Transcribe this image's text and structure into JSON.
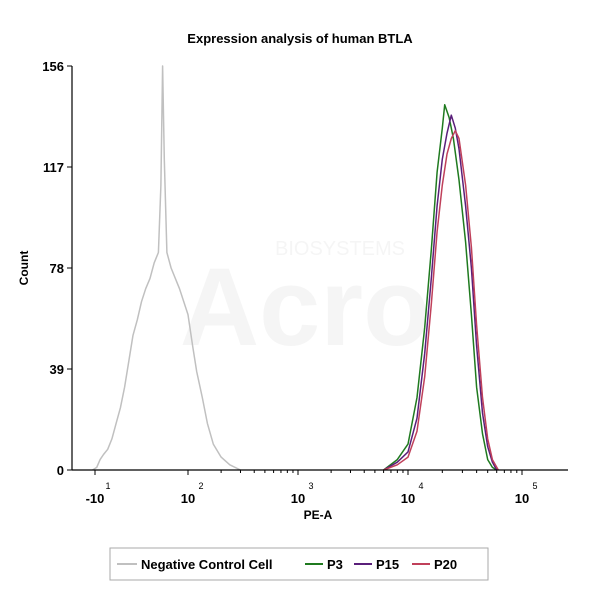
{
  "chart_data": {
    "type": "line",
    "title": "Expression analysis of human BTLA",
    "xlabel": "PE-A",
    "ylabel": "Count",
    "x_scale": "biexponential/log",
    "xlim": [
      -10,
      100000
    ],
    "ylim": [
      0,
      156
    ],
    "y_ticks": [
      0,
      39,
      78,
      117,
      156
    ],
    "x_ticks": [
      {
        "value": -10,
        "base": "-10",
        "exp": "1"
      },
      {
        "value": 100,
        "base": "10",
        "exp": "2"
      },
      {
        "value": 1000,
        "base": "10",
        "exp": "3"
      },
      {
        "value": 10000,
        "base": "10",
        "exp": "4"
      },
      {
        "value": 100000,
        "base": "10",
        "exp": "5"
      }
    ],
    "grid": false,
    "legend_position": "bottom",
    "watermark": "BIOSYSTEMS Acro",
    "series": [
      {
        "name": "Negative Control Cell",
        "color": "#c0c0c0",
        "points": [
          [
            -12,
            0
          ],
          [
            -8,
            1
          ],
          [
            -4,
            4
          ],
          [
            0,
            6
          ],
          [
            5,
            8
          ],
          [
            10,
            12
          ],
          [
            15,
            18
          ],
          [
            20,
            24
          ],
          [
            25,
            32
          ],
          [
            30,
            42
          ],
          [
            35,
            52
          ],
          [
            40,
            58
          ],
          [
            45,
            65
          ],
          [
            50,
            70
          ],
          [
            55,
            74
          ],
          [
            60,
            80
          ],
          [
            65,
            84
          ],
          [
            68,
            110
          ],
          [
            70,
            156
          ],
          [
            72,
            120
          ],
          [
            75,
            84
          ],
          [
            80,
            78
          ],
          [
            90,
            70
          ],
          [
            100,
            60
          ],
          [
            110,
            48
          ],
          [
            120,
            38
          ],
          [
            135,
            28
          ],
          [
            150,
            18
          ],
          [
            170,
            10
          ],
          [
            200,
            5
          ],
          [
            240,
            2
          ],
          [
            300,
            0
          ]
        ]
      },
      {
        "name": "P3",
        "color": "#1f7a1f",
        "points": [
          [
            6000,
            0
          ],
          [
            8000,
            4
          ],
          [
            10000,
            10
          ],
          [
            12000,
            28
          ],
          [
            14000,
            55
          ],
          [
            16000,
            85
          ],
          [
            18000,
            115
          ],
          [
            20000,
            132
          ],
          [
            21000,
            141
          ],
          [
            23000,
            136
          ],
          [
            25000,
            128
          ],
          [
            28000,
            112
          ],
          [
            32000,
            88
          ],
          [
            36000,
            60
          ],
          [
            40000,
            32
          ],
          [
            45000,
            14
          ],
          [
            50000,
            4
          ],
          [
            55000,
            1
          ],
          [
            60000,
            0
          ]
        ]
      },
      {
        "name": "P15",
        "color": "#5a1f7a",
        "points": [
          [
            6000,
            0
          ],
          [
            8000,
            3
          ],
          [
            10000,
            7
          ],
          [
            12000,
            20
          ],
          [
            14000,
            45
          ],
          [
            16000,
            74
          ],
          [
            18000,
            102
          ],
          [
            20000,
            120
          ],
          [
            22000,
            130
          ],
          [
            24000,
            137
          ],
          [
            26000,
            132
          ],
          [
            28000,
            124
          ],
          [
            32000,
            102
          ],
          [
            36000,
            78
          ],
          [
            40000,
            48
          ],
          [
            45000,
            22
          ],
          [
            50000,
            9
          ],
          [
            55000,
            3
          ],
          [
            60000,
            0
          ]
        ]
      },
      {
        "name": "P20",
        "color": "#c0405a",
        "points": [
          [
            6000,
            0
          ],
          [
            8000,
            2
          ],
          [
            10000,
            5
          ],
          [
            12000,
            15
          ],
          [
            14000,
            36
          ],
          [
            16000,
            64
          ],
          [
            18000,
            92
          ],
          [
            20000,
            110
          ],
          [
            22000,
            122
          ],
          [
            24000,
            128
          ],
          [
            26000,
            131
          ],
          [
            28000,
            128
          ],
          [
            32000,
            110
          ],
          [
            36000,
            86
          ],
          [
            40000,
            56
          ],
          [
            45000,
            28
          ],
          [
            50000,
            12
          ],
          [
            55000,
            4
          ],
          [
            62000,
            0
          ]
        ]
      }
    ]
  }
}
